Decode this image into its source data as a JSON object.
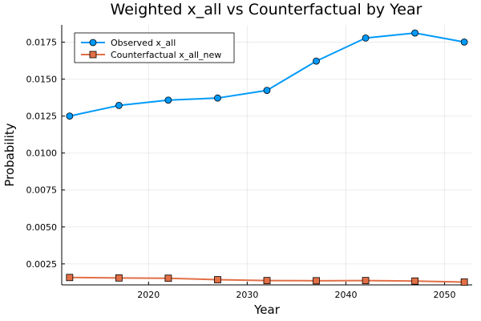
{
  "chart_data": {
    "type": "line",
    "title": "Weighted x_all vs Counterfactual by Year",
    "xlabel": "Year",
    "ylabel": "Probability",
    "xlim": [
      2011.2,
      2052.8
    ],
    "ylim": [
      0.00108,
      0.01867
    ],
    "x_ticks": [
      2020,
      2030,
      2040,
      2050
    ],
    "x_tick_labels": [
      "2020",
      "2030",
      "2040",
      "2050"
    ],
    "y_ticks": [
      0.0025,
      0.005,
      0.0075,
      0.01,
      0.0125,
      0.015,
      0.0175
    ],
    "y_tick_labels": [
      "0.0025",
      "0.0050",
      "0.0075",
      "0.0100",
      "0.0125",
      "0.0150",
      "0.0175"
    ],
    "grid": true,
    "legend_position": "top-left",
    "x": [
      2012,
      2017,
      2022,
      2027,
      2032,
      2037,
      2042,
      2047,
      2052
    ],
    "series": [
      {
        "name": "Observed x_all",
        "marker": "circle",
        "color": "#009af9",
        "values": [
          0.0125,
          0.01322,
          0.01358,
          0.01372,
          0.01424,
          0.01622,
          0.01778,
          0.01812,
          0.01751
        ]
      },
      {
        "name": "Counterfactual x_all_new",
        "marker": "square",
        "color": "#e26f46",
        "values": [
          0.00158,
          0.00155,
          0.00153,
          0.00143,
          0.00137,
          0.00136,
          0.00137,
          0.00134,
          0.00127
        ]
      }
    ]
  }
}
